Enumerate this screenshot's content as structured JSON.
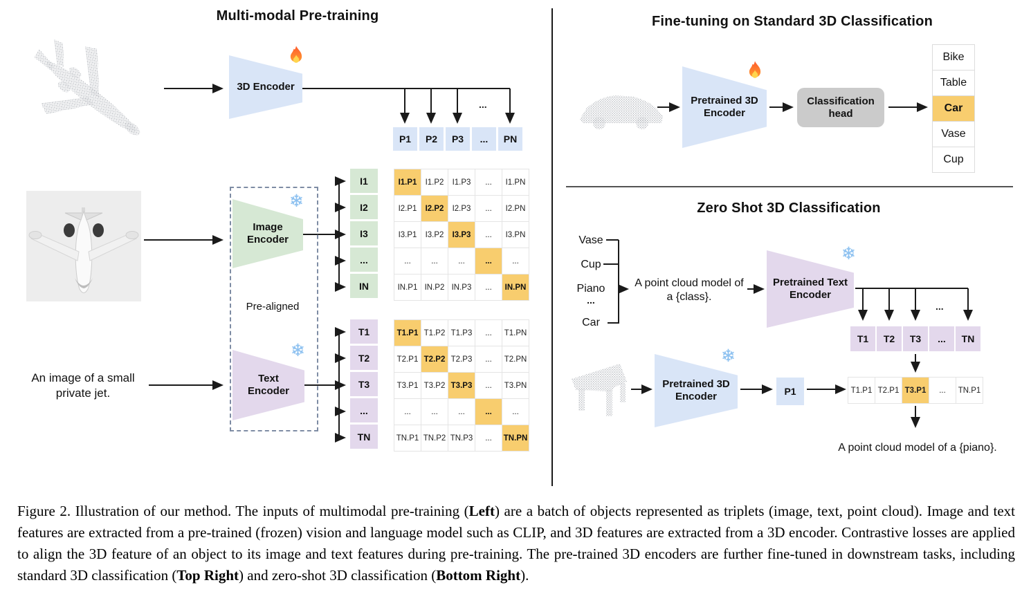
{
  "colors": {
    "blue": "#d9e5f7",
    "green": "#d6e8d4",
    "purple": "#e3d8ec",
    "highlight_orange": "#f8cd6e",
    "head_gray": "#cbcbcb",
    "point_cloud_gray": "#a8acb2"
  },
  "icons": {
    "fire": "flame",
    "snowflake": "❄"
  },
  "pretraining": {
    "title": "Multi-modal Pre-training",
    "encoder_3d": "3D Encoder",
    "image_encoder": [
      "Image",
      "Encoder"
    ],
    "text_encoder": [
      "Text",
      "Encoder"
    ],
    "prealigned": "Pre-aligned",
    "text_input": [
      "An image of a small",
      "private jet."
    ],
    "ellipsis": "...",
    "p_row": [
      "P1",
      "P2",
      "P3",
      "...",
      "PN"
    ],
    "i_col": [
      "I1",
      "I2",
      "I3",
      "...",
      "IN"
    ],
    "t_col": [
      "T1",
      "T2",
      "T3",
      "...",
      "TN"
    ],
    "i_matrix": [
      [
        "I1.P1",
        "I1.P2",
        "I1.P3",
        "...",
        "I1.PN"
      ],
      [
        "I2.P1",
        "I2.P2",
        "I2.P3",
        "...",
        "I2.PN"
      ],
      [
        "I3.P1",
        "I3.P2",
        "I3.P3",
        "...",
        "I3.PN"
      ],
      [
        "...",
        "...",
        "...",
        "...",
        "..."
      ],
      [
        "IN.P1",
        "IN.P2",
        "IN.P3",
        "...",
        "IN.PN"
      ]
    ],
    "t_matrix": [
      [
        "T1.P1",
        "T1.P2",
        "T1.P3",
        "...",
        "T1.PN"
      ],
      [
        "T2.P1",
        "T2.P2",
        "T2.P3",
        "...",
        "T2.PN"
      ],
      [
        "T3.P1",
        "T3.P2",
        "T3.P3",
        "...",
        "T3.PN"
      ],
      [
        "...",
        "...",
        "...",
        "...",
        "..."
      ],
      [
        "TN.P1",
        "TN.P2",
        "TN.P3",
        "...",
        "TN.PN"
      ]
    ]
  },
  "finetune": {
    "title": "Fine-tuning on Standard 3D Classification",
    "encoder": [
      "Pretrained 3D",
      "Encoder"
    ],
    "head": [
      "Classification",
      "head"
    ],
    "classes": [
      "Bike",
      "Table",
      "Car",
      "Vase",
      "Cup"
    ],
    "highlighted_class_index": 2
  },
  "zeroshot": {
    "title": "Zero Shot 3D Classification",
    "classes": [
      "Vase",
      "Cup",
      "Piano",
      "...",
      "Car"
    ],
    "prompt": [
      "A point cloud model of",
      "a {class}."
    ],
    "text_encoder": [
      "Pretrained Text",
      "Encoder"
    ],
    "encoder_3d": [
      "Pretrained 3D",
      "Encoder"
    ],
    "p_cell": "P1",
    "ellipsis": "...",
    "t_row": [
      "T1",
      "T2",
      "T3",
      "...",
      "TN"
    ],
    "sim_row": [
      "T1.P1",
      "T2.P1",
      "T3.P1",
      "...",
      "TN.P1"
    ],
    "sim_highlight_index": 2,
    "result": "A point cloud model of a {piano}."
  },
  "caption": {
    "segments": [
      {
        "text": "Figure 2. Illustration of our method.  The inputs of multimodal pre-training (",
        "bold": false
      },
      {
        "text": "Left",
        "bold": true
      },
      {
        "text": ") are a batch of objects represented as triplets (image, text, point cloud).  Image and text features are extracted from a pre-trained (frozen) vision and language model such as CLIP, and 3D features are extracted from a 3D encoder.  Contrastive losses are applied to align the 3D feature of an object to its image and text features during pre-training.  The pre-trained 3D encoders are further fine-tuned in downstream tasks, including standard 3D classification (",
        "bold": false
      },
      {
        "text": "Top Right",
        "bold": true
      },
      {
        "text": ") and zero-shot 3D classification (",
        "bold": false
      },
      {
        "text": "Bottom Right",
        "bold": true
      },
      {
        "text": ").",
        "bold": false
      }
    ]
  }
}
